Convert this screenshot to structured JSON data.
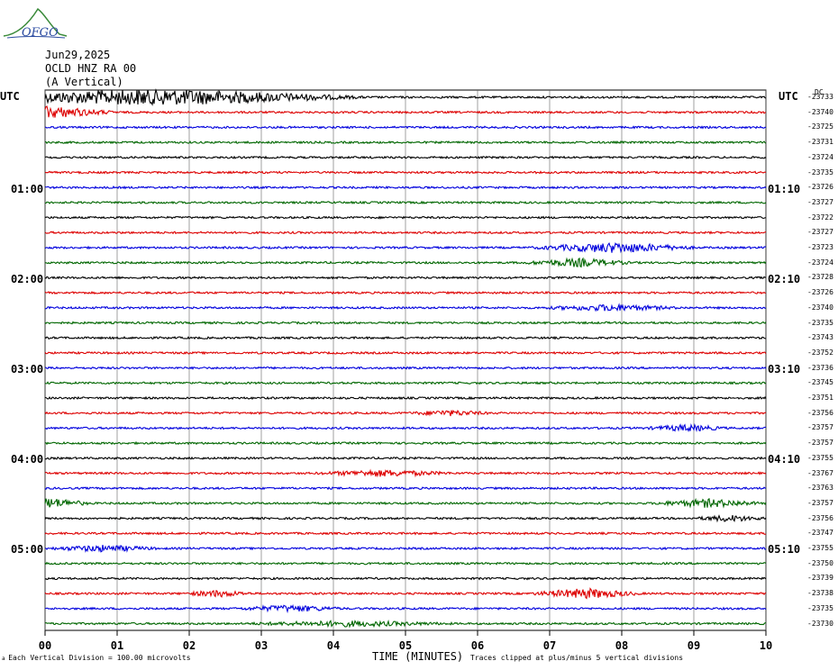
{
  "logo": {
    "text": "OFGO"
  },
  "header": {
    "date": "Jun29,2025",
    "station": "OCLD HNZ RA 00",
    "component": "(A Vertical)"
  },
  "axis": {
    "left_unit": "UTC",
    "right_unit": "UTC",
    "dc_label": "DC",
    "left_hour_labels": [
      "01:00",
      "02:00",
      "03:00",
      "04:00",
      "05:00"
    ],
    "right_hour_labels": [
      "01:10",
      "02:10",
      "03:10",
      "04:10",
      "05:10"
    ],
    "x_ticks": [
      "00",
      "01",
      "02",
      "03",
      "04",
      "05",
      "06",
      "07",
      "08",
      "09",
      "10"
    ],
    "x_title": "TIME (MINUTES)"
  },
  "footer": {
    "left": "Each Vertical Division =  100.00 microvolts",
    "right": "Traces clipped at plus/minus 5 vertical divisions"
  },
  "colors": {
    "cycle": [
      "#000000",
      "#dd0000",
      "#0000dd",
      "#006600"
    ],
    "grid": "#606060"
  },
  "chart_data": {
    "type": "line",
    "xlabel": "TIME (MINUTES)",
    "xlim": [
      0,
      10
    ],
    "trace_count": 36,
    "dc_offsets": [
      "-23733",
      "-23740",
      "-23725",
      "-23731",
      "-23724",
      "-23735",
      "-23726",
      "-23727",
      "-23722",
      "-23727",
      "-23723",
      "-23724",
      "-23728",
      "-23726",
      "-23740",
      "-23735",
      "-23743",
      "-23752",
      "-23736",
      "-23745",
      "-23751",
      "-23756",
      "-23757",
      "-23757",
      "-23755",
      "-23767",
      "-23763",
      "-23757",
      "-23756",
      "-23747",
      "-23755",
      "-23750",
      "-23739",
      "-23738",
      "-23735",
      "-23730"
    ]
  }
}
